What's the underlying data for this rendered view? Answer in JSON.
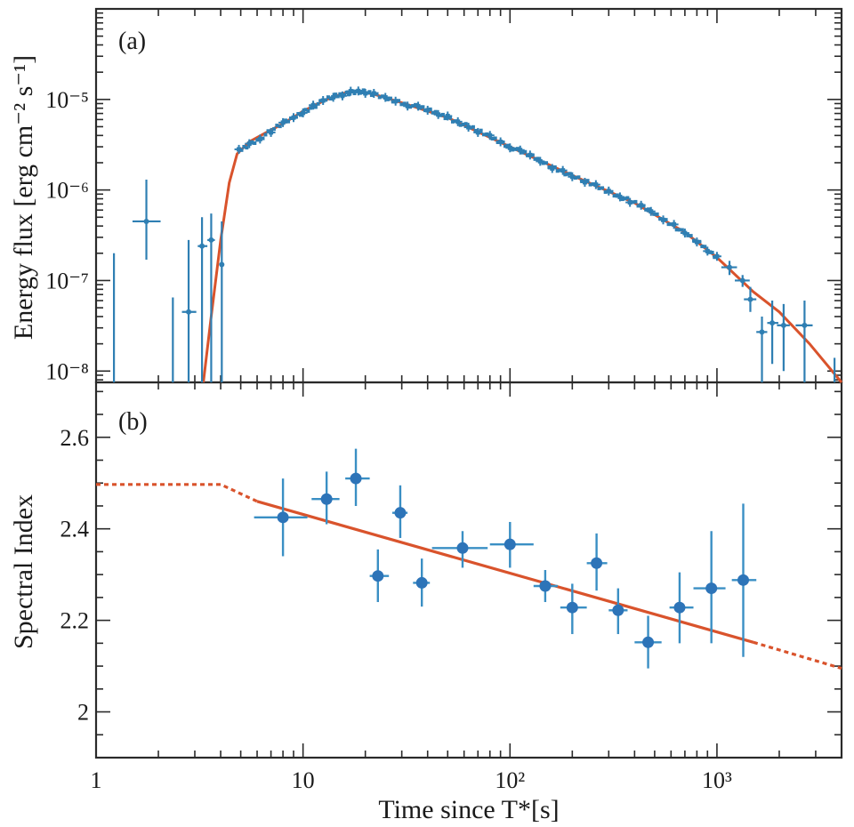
{
  "chart_data": [
    {
      "type": "scatter",
      "panel_label": "(a)",
      "ylabel": "Energy flux [erg cm⁻² s⁻¹]",
      "xscale": "log",
      "yscale": "log",
      "xlim": [
        1,
        4000
      ],
      "ylim": [
        7.5e-09,
        0.0001
      ],
      "x_tick_labels": [
        "1",
        "10",
        "10²",
        "10³"
      ],
      "y_tick_labels": [
        "10⁻⁸",
        "10⁻⁷",
        "10⁻⁶",
        "10⁻⁵"
      ],
      "y_ticks": [
        1e-08,
        1e-07,
        1e-06,
        1e-05
      ],
      "grid": false,
      "colors": {
        "points": "#2f7fb3",
        "model": "#d9532c"
      },
      "early_points": [
        {
          "x": 1.22,
          "y": 8e-09,
          "xerr": [
            1.22,
            1.22
          ],
          "yerr": [
            7.5e-09,
            2e-07
          ]
        },
        {
          "x": 1.75,
          "y": 4.5e-07,
          "xerr": [
            1.5,
            2.05
          ],
          "yerr": [
            1.7e-07,
            1.3e-06
          ]
        },
        {
          "x": 2.35,
          "y": 8e-09,
          "xerr": [
            2.35,
            2.35
          ],
          "yerr": [
            7.5e-09,
            6.5e-08
          ]
        },
        {
          "x": 2.8,
          "y": 4.5e-08,
          "xerr": [
            2.6,
            3.05
          ],
          "yerr": [
            7.5e-09,
            2.8e-07
          ]
        },
        {
          "x": 3.25,
          "y": 2.4e-07,
          "xerr": [
            3.1,
            3.45
          ],
          "yerr": [
            7.5e-09,
            5e-07
          ]
        },
        {
          "x": 3.6,
          "y": 2.8e-07,
          "xerr": [
            3.45,
            3.75
          ],
          "yerr": [
            7.5e-09,
            5.5e-07
          ]
        },
        {
          "x": 4.05,
          "y": 1.5e-07,
          "xerr": [
            3.95,
            4.15
          ],
          "yerr": [
            7.5e-09,
            4.5e-07
          ]
        }
      ],
      "dense_points": [
        [
          4.9,
          2.7e-06
        ],
        [
          5.5,
          3.2e-06
        ],
        [
          6.2,
          3.7e-06
        ],
        [
          7.0,
          4.5e-06
        ],
        [
          8.0,
          5.4e-06
        ],
        [
          9.0,
          6.3e-06
        ],
        [
          10.0,
          7.3e-06
        ],
        [
          11.2,
          8.3e-06
        ],
        [
          12.5,
          9.6e-06
        ],
        [
          14.0,
          1.07e-05
        ],
        [
          15.5,
          1.14e-05
        ],
        [
          17.0,
          1.2e-05
        ],
        [
          18.5,
          1.24e-05
        ],
        [
          20.0,
          1.2e-05
        ],
        [
          22.0,
          1.12e-05
        ],
        [
          25.0,
          1.04e-05
        ],
        [
          28.0,
          9.7e-06
        ],
        [
          32.0,
          8.8e-06
        ],
        [
          36.0,
          8.2e-06
        ],
        [
          40.0,
          7.6e-06
        ],
        [
          45.0,
          7e-06
        ],
        [
          50.0,
          6.3e-06
        ],
        [
          56.0,
          5.6e-06
        ],
        [
          63.0,
          5e-06
        ],
        [
          70.0,
          4.5e-06
        ],
        [
          80.0,
          3.9e-06
        ],
        [
          90.0,
          3.4e-06
        ],
        [
          100.0,
          3e-06
        ],
        [
          112.0,
          2.65e-06
        ],
        [
          125.0,
          2.4e-06
        ],
        [
          140.0,
          2.1e-06
        ],
        [
          160.0,
          1.8e-06
        ],
        [
          180.0,
          1.6e-06
        ],
        [
          200.0,
          1.4e-06
        ],
        [
          230.0,
          1.25e-06
        ],
        [
          260.0,
          1.1e-06
        ],
        [
          300.0,
          9.6e-07
        ],
        [
          340.0,
          8.5e-07
        ],
        [
          380.0,
          7.6e-07
        ],
        [
          430.0,
          6.6e-07
        ],
        [
          480.0,
          5.8e-07
        ],
        [
          550.0,
          4.8e-07
        ],
        [
          620.0,
          4e-07
        ],
        [
          700.0,
          3.3e-07
        ],
        [
          800.0,
          2.7e-07
        ],
        [
          900.0,
          2.2e-07
        ],
        [
          1000.0,
          1.8e-07
        ]
      ],
      "late_points": [
        {
          "x": 1150,
          "y": 1.4e-07,
          "xerr": [
            1050,
            1250
          ],
          "yerr": [
            1.15e-07,
            1.65e-07
          ]
        },
        {
          "x": 1330,
          "y": 1e-07,
          "xerr": [
            1220,
            1440
          ],
          "yerr": [
            8.5e-08,
            1.15e-07
          ]
        },
        {
          "x": 1450,
          "y": 6.2e-08,
          "xerr": [
            1350,
            1550
          ],
          "yerr": [
            4.5e-08,
            8.5e-08
          ]
        },
        {
          "x": 1650,
          "y": 2.7e-08,
          "xerr": [
            1550,
            1750
          ],
          "yerr": [
            7.5e-09,
            4e-08
          ]
        },
        {
          "x": 1850,
          "y": 3.4e-08,
          "xerr": [
            1750,
            1980
          ],
          "yerr": [
            1.2e-08,
            6e-08
          ]
        },
        {
          "x": 2100,
          "y": 3.2e-08,
          "xerr": [
            1950,
            2250
          ],
          "yerr": [
            1e-08,
            5.5e-08
          ]
        },
        {
          "x": 2650,
          "y": 3.2e-08,
          "xerr": [
            2400,
            2900
          ],
          "yerr": [
            7.5e-09,
            6e-08
          ]
        },
        {
          "x": 3700,
          "y": 8e-09,
          "xerr": [
            3700,
            3700
          ],
          "yerr": [
            7.5e-09,
            1.4e-08
          ]
        }
      ],
      "model_curve": [
        [
          3.3,
          7.5e-09
        ],
        [
          3.6,
          4e-08
        ],
        [
          4.0,
          2.8e-07
        ],
        [
          4.4,
          1.2e-06
        ],
        [
          4.8,
          2.5e-06
        ],
        [
          5.5,
          3.4e-06
        ],
        [
          6.5,
          4.2e-06
        ],
        [
          8.0,
          5.4e-06
        ],
        [
          10.0,
          7.4e-06
        ],
        [
          13.0,
          1e-05
        ],
        [
          16.0,
          1.18e-05
        ],
        [
          18.5,
          1.24e-05
        ],
        [
          22.0,
          1.14e-05
        ],
        [
          30.0,
          9.2e-06
        ],
        [
          50.0,
          6.3e-06
        ],
        [
          100.0,
          3e-06
        ],
        [
          200.0,
          1.45e-06
        ],
        [
          400.0,
          7.2e-07
        ],
        [
          700.0,
          3.4e-07
        ],
        [
          1000.0,
          1.8e-07
        ],
        [
          1500.0,
          7.5e-08
        ],
        [
          2000.0,
          4.5e-08
        ],
        [
          2800.0,
          2e-08
        ],
        [
          4000.0,
          7.5e-09
        ]
      ]
    },
    {
      "type": "scatter",
      "panel_label": "(b)",
      "xlabel": "Time since T*[s]",
      "ylabel": "Spectral Index",
      "xscale": "log",
      "xlim": [
        1,
        4000
      ],
      "ylim": [
        1.9,
        2.72
      ],
      "y_ticks": [
        2.0,
        2.2,
        2.4,
        2.6
      ],
      "y_tick_labels": [
        "2",
        "2.2",
        "2.4",
        "2.6"
      ],
      "x_tick_labels": [
        "1",
        "10",
        "10²",
        "10³"
      ],
      "grid": false,
      "colors": {
        "points": "#2d74b8",
        "model": "#d9532c"
      },
      "points": [
        {
          "x": 8.0,
          "y": 2.425,
          "xerr": [
            5.8,
            10.5
          ],
          "yerr": [
            2.34,
            2.51
          ]
        },
        {
          "x": 13.0,
          "y": 2.465,
          "xerr": [
            11.0,
            15.0
          ],
          "yerr": [
            2.41,
            2.525
          ]
        },
        {
          "x": 18.0,
          "y": 2.51,
          "xerr": [
            16.0,
            21.0
          ],
          "yerr": [
            2.45,
            2.575
          ]
        },
        {
          "x": 23.0,
          "y": 2.297,
          "xerr": [
            21.0,
            26.0
          ],
          "yerr": [
            2.24,
            2.355
          ]
        },
        {
          "x": 29.5,
          "y": 2.435,
          "xerr": [
            27.0,
            32.0
          ],
          "yerr": [
            2.38,
            2.495
          ]
        },
        {
          "x": 37.5,
          "y": 2.282,
          "xerr": [
            34.0,
            41.0
          ],
          "yerr": [
            2.23,
            2.335
          ]
        },
        {
          "x": 59.0,
          "y": 2.358,
          "xerr": [
            42.0,
            78.0
          ],
          "yerr": [
            2.315,
            2.395
          ]
        },
        {
          "x": 100.0,
          "y": 2.366,
          "xerr": [
            80.0,
            130.0
          ],
          "yerr": [
            2.315,
            2.415
          ]
        },
        {
          "x": 148.0,
          "y": 2.275,
          "xerr": [
            130.0,
            170.0
          ],
          "yerr": [
            2.24,
            2.31
          ]
        },
        {
          "x": 200.0,
          "y": 2.228,
          "xerr": [
            175.0,
            235.0
          ],
          "yerr": [
            2.17,
            2.28
          ]
        },
        {
          "x": 262.0,
          "y": 2.325,
          "xerr": [
            235.0,
            295.0
          ],
          "yerr": [
            2.265,
            2.39
          ]
        },
        {
          "x": 333.0,
          "y": 2.222,
          "xerr": [
            300.0,
            370.0
          ],
          "yerr": [
            2.17,
            2.27
          ]
        },
        {
          "x": 465.0,
          "y": 2.152,
          "xerr": [
            400.0,
            540.0
          ],
          "yerr": [
            2.095,
            2.21
          ]
        },
        {
          "x": 660.0,
          "y": 2.228,
          "xerr": [
            590.0,
            770.0
          ],
          "yerr": [
            2.15,
            2.305
          ]
        },
        {
          "x": 940.0,
          "y": 2.27,
          "xerr": [
            770.0,
            1100.0
          ],
          "yerr": [
            2.15,
            2.395
          ]
        },
        {
          "x": 1340.0,
          "y": 2.288,
          "xerr": [
            1180.0,
            1550.0
          ],
          "yerr": [
            2.12,
            2.455
          ]
        }
      ],
      "model_dashed_early": [
        [
          1.0,
          2.497
        ],
        [
          4.0,
          2.497
        ],
        [
          6.0,
          2.46
        ]
      ],
      "model_solid": [
        [
          6.0,
          2.46
        ],
        [
          1500.0,
          2.152
        ]
      ],
      "model_dashed_late": [
        [
          1500.0,
          2.152
        ],
        [
          4000.0,
          2.095
        ]
      ]
    }
  ]
}
